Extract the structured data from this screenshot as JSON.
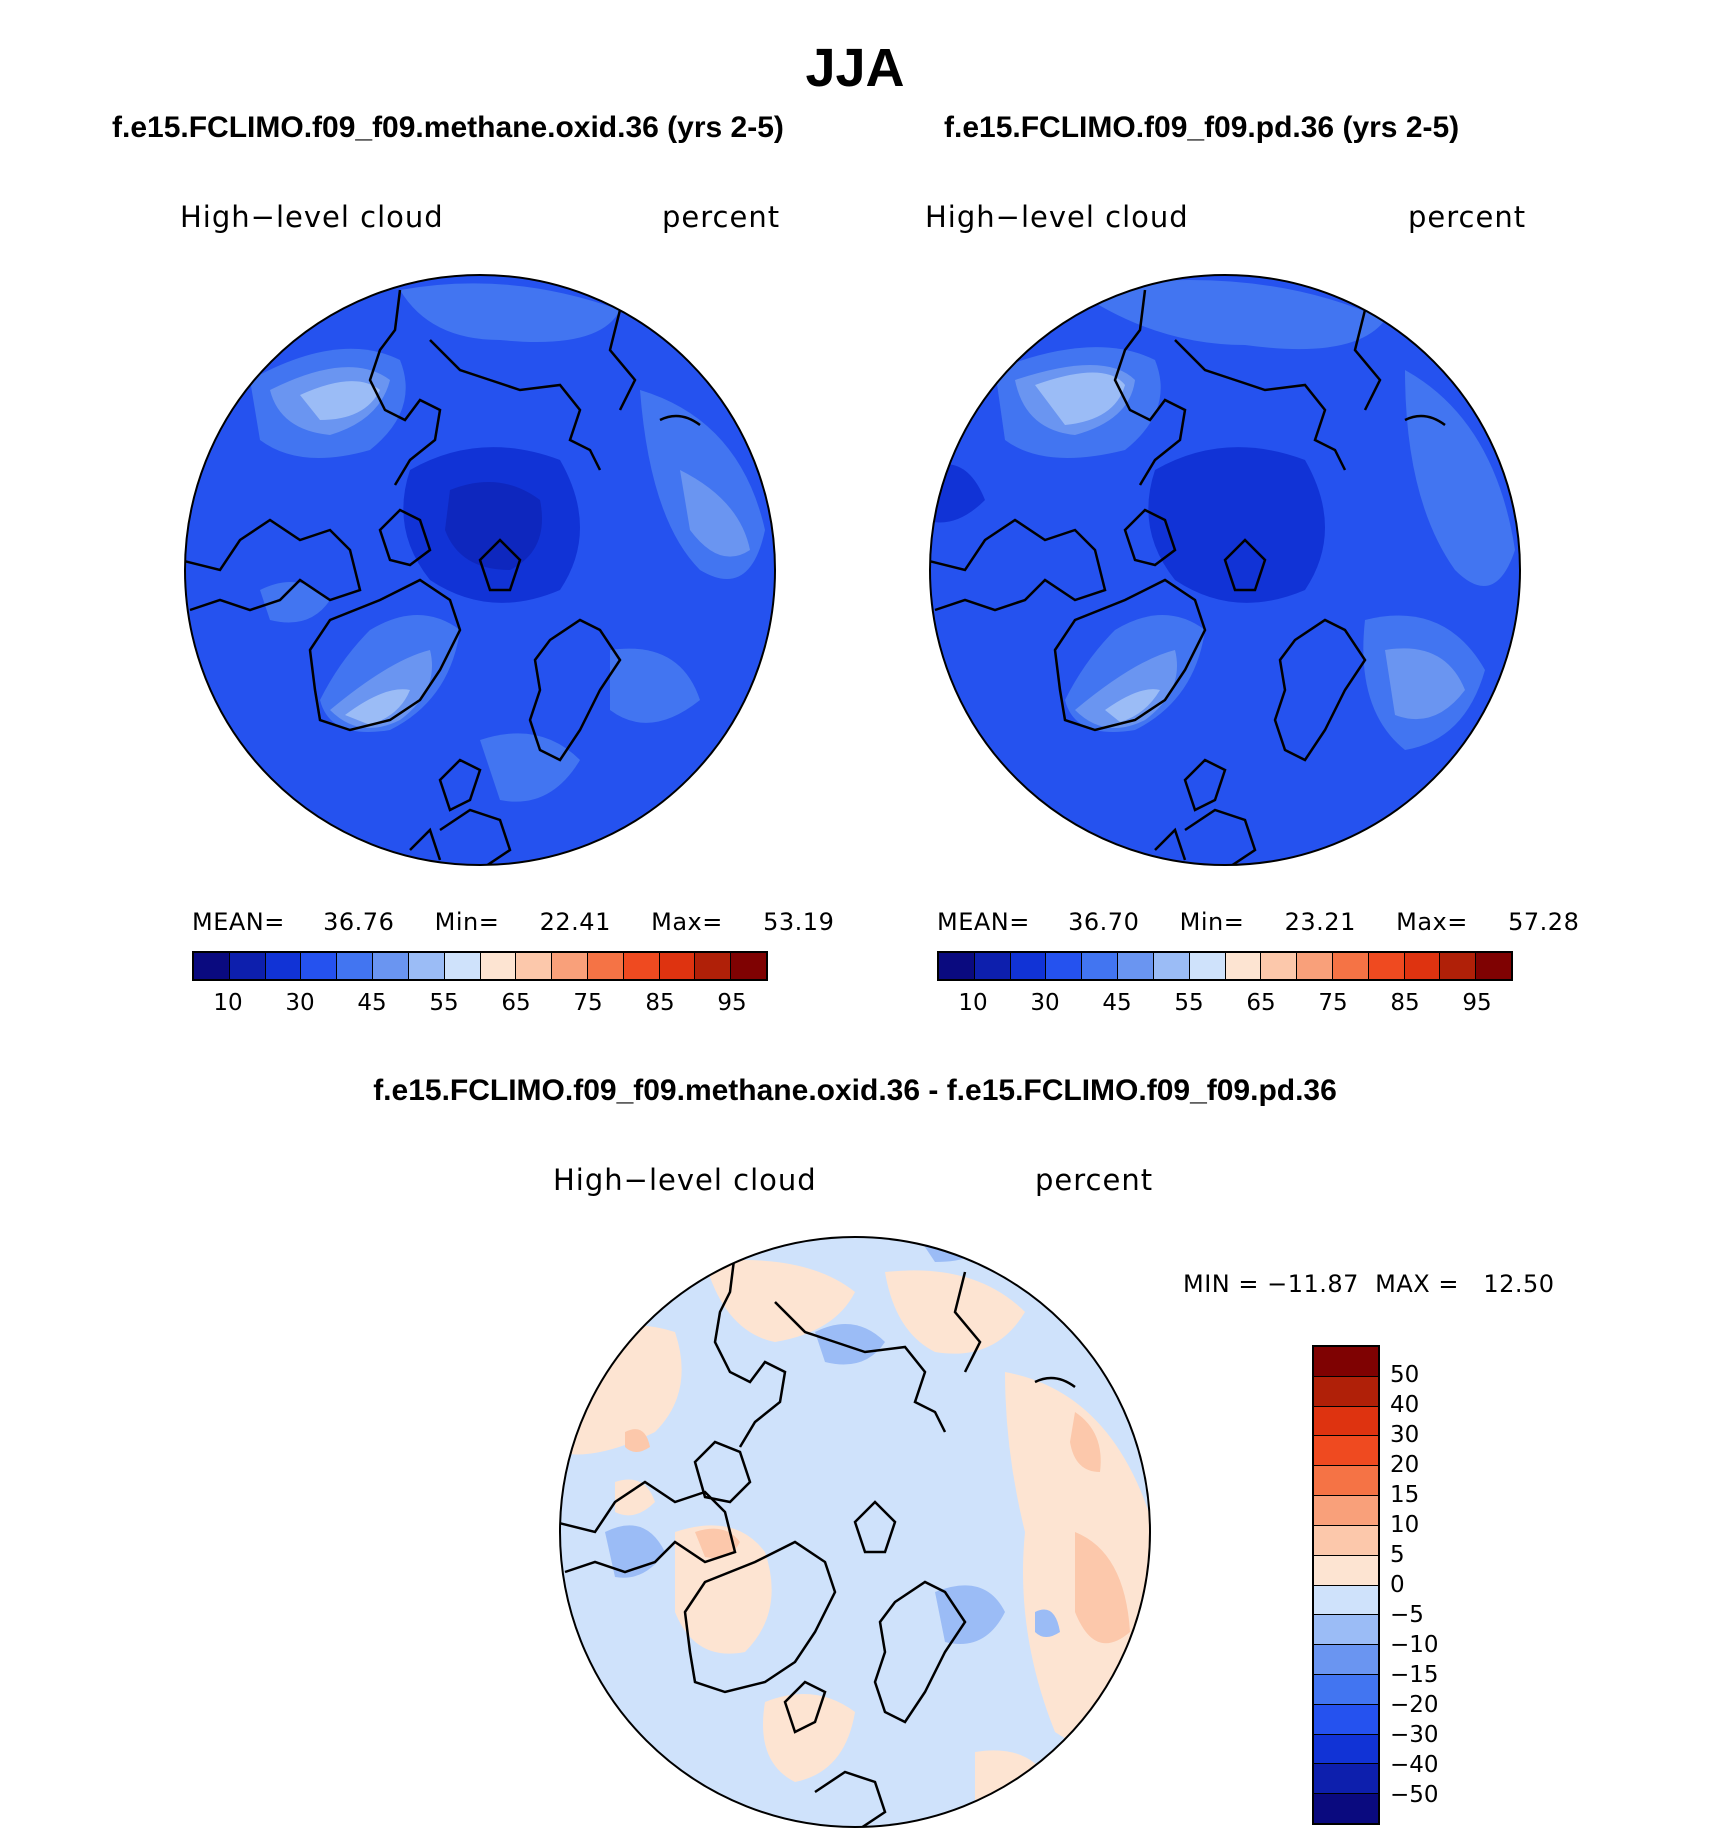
{
  "title": "JJA",
  "panels": [
    {
      "case_title": "f.e15.FCLIMO.f09_f09.methane.oxid.36 (yrs 2-5)",
      "variable": "High−level cloud",
      "units": "percent",
      "mean_label": "MEAN=",
      "mean": "36.76",
      "min_label": "Min=",
      "min": "22.41",
      "max_label": "Max=",
      "max": "53.19",
      "field": "blue-dominant",
      "ticks": [
        "10",
        "30",
        "45",
        "55",
        "65",
        "75",
        "85",
        "95"
      ]
    },
    {
      "case_title": "f.e15.FCLIMO.f09_f09.pd.36 (yrs 2-5)",
      "variable": "High−level cloud",
      "units": "percent",
      "mean_label": "MEAN=",
      "mean": "36.70",
      "min_label": "Min=",
      "min": "23.21",
      "max_label": "Max=",
      "max": "57.28",
      "field": "blue-dominant",
      "ticks": [
        "10",
        "30",
        "45",
        "55",
        "65",
        "75",
        "85",
        "95"
      ]
    }
  ],
  "diff": {
    "case_title": "f.e15.FCLIMO.f09_f09.methane.oxid.36 - f.e15.FCLIMO.f09_f09.pd.36",
    "variable": "High−level cloud",
    "units": "percent",
    "minmax_label": "MIN = −11.87  MAX =   12.50",
    "field": "near-zero mix of light red and light blue",
    "ticks": [
      "−50",
      "−40",
      "−30",
      "−20",
      "−15",
      "−10",
      "−5",
      "0",
      "5",
      "10",
      "15",
      "20",
      "30",
      "40",
      "50"
    ]
  },
  "colors": {
    "abs_scale": [
      "#0a0a7f",
      "#0d1fad",
      "#1133d6",
      "#2552ef",
      "#4275f1",
      "#6a95f1",
      "#9bbcf6",
      "#cfe2fb",
      "#fde4d2",
      "#fcc8ab",
      "#f9a07a",
      "#f57345",
      "#ef4a20",
      "#de3310",
      "#b02008",
      "#7f0202"
    ],
    "diff_scale": [
      "#0a0a7f",
      "#0d1fad",
      "#1133d6",
      "#2552ef",
      "#4275f1",
      "#6a95f1",
      "#9bbcf6",
      "#cfe2fb",
      "#fde4d2",
      "#fcc8ab",
      "#f9a07a",
      "#f57345",
      "#ef4a20",
      "#de3310",
      "#b02008",
      "#7f0202"
    ]
  }
}
